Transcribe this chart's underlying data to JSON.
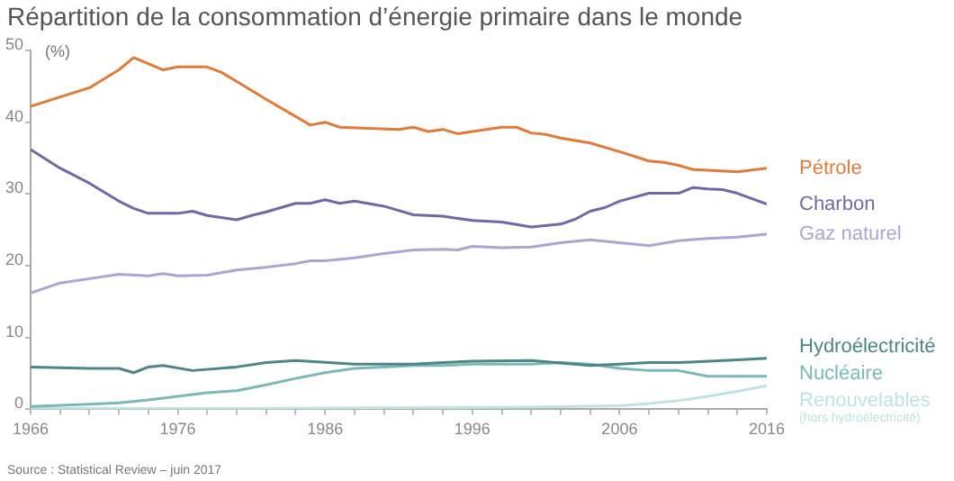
{
  "chart_data": {
    "type": "line",
    "title": "Répartition de la consommation d’énergie primaire dans le monde",
    "ylabel": "(%)",
    "annotations": [
      "Source : Statistical Review – juin 2017"
    ],
    "xlim": [
      1966,
      2016
    ],
    "xticks": [
      1966,
      {
        "value": 1968,
        "label": null
      },
      {
        "value": 1970,
        "label": null
      },
      {
        "value": 1972,
        "label": null
      },
      {
        "value": 1974,
        "label": null
      },
      1976,
      {
        "value": 1978,
        "label": null
      },
      {
        "value": 1980,
        "label": null
      },
      {
        "value": 1982,
        "label": null
      },
      {
        "value": 1984,
        "label": null
      },
      1986,
      {
        "value": 1988,
        "label": null
      },
      {
        "value": 1990,
        "label": null
      },
      {
        "value": 1992,
        "label": null
      },
      {
        "value": 1994,
        "label": null
      },
      1996,
      {
        "value": 1998,
        "label": null
      },
      {
        "value": 2000,
        "label": null
      },
      {
        "value": 2002,
        "label": null
      },
      {
        "value": 2004,
        "label": null
      },
      2006,
      {
        "value": 2008,
        "label": null
      },
      {
        "value": 2010,
        "label": null
      },
      {
        "value": 2012,
        "label": null
      },
      {
        "value": 2014,
        "label": null
      },
      2016
    ],
    "ylim": [
      0,
      50
    ],
    "yticks": [
      0,
      10,
      20,
      30,
      40,
      50
    ],
    "grid": false,
    "legend": false,
    "marker": "none",
    "line_style": "solid",
    "series": [
      {
        "name": "Pétrole",
        "color": "#e07b39",
        "x": [
          1966,
          1970,
          1972,
          1973,
          1975,
          1976,
          1978,
          1979,
          1982,
          1985,
          1986,
          1987,
          1991,
          1992,
          1993,
          1994,
          1995,
          1996,
          1998,
          1999,
          2000,
          2001,
          2002,
          2004,
          2006,
          2008,
          2009,
          2010,
          2011,
          2012,
          2014,
          2016
        ],
        "values": [
          42.2,
          44.8,
          47.3,
          49.0,
          47.3,
          47.7,
          47.7,
          46.9,
          43.2,
          39.6,
          40.0,
          39.3,
          39.0,
          39.3,
          38.7,
          39.0,
          38.4,
          38.7,
          39.3,
          39.3,
          38.5,
          38.3,
          37.8,
          37.1,
          35.9,
          34.6,
          34.4,
          34.0,
          33.4,
          33.3,
          33.1,
          33.6
        ]
      },
      {
        "name": "Charbon",
        "color": "#6e6aa6",
        "x": [
          1966,
          1968,
          1970,
          1972,
          1973,
          1974,
          1976,
          1977,
          1978,
          1980,
          1981,
          1982,
          1984,
          1985,
          1986,
          1987,
          1988,
          1990,
          1992,
          1994,
          1996,
          1998,
          2000,
          2002,
          2003,
          2004,
          2005,
          2006,
          2008,
          2010,
          2011,
          2012,
          2013,
          2014,
          2016
        ],
        "values": [
          36.2,
          33.6,
          31.5,
          29.0,
          28.0,
          27.3,
          27.3,
          27.6,
          27.0,
          26.4,
          27.0,
          27.5,
          28.7,
          28.7,
          29.2,
          28.7,
          29.0,
          28.3,
          27.1,
          26.9,
          26.3,
          26.1,
          25.4,
          25.8,
          26.5,
          27.6,
          28.1,
          29.0,
          30.1,
          30.1,
          30.9,
          30.7,
          30.6,
          30.1,
          28.6
        ]
      },
      {
        "name": "Gaz naturel",
        "color": "#aaa5d5",
        "x": [
          1966,
          1968,
          1970,
          1972,
          1974,
          1975,
          1976,
          1978,
          1980,
          1982,
          1984,
          1985,
          1986,
          1988,
          1990,
          1992,
          1994,
          1995,
          1996,
          1998,
          2000,
          2002,
          2004,
          2006,
          2008,
          2010,
          2012,
          2014,
          2016
        ],
        "values": [
          16.2,
          17.6,
          18.2,
          18.8,
          18.6,
          18.9,
          18.6,
          18.7,
          19.4,
          19.8,
          20.3,
          20.7,
          20.7,
          21.1,
          21.7,
          22.2,
          22.3,
          22.2,
          22.7,
          22.5,
          22.6,
          23.2,
          23.6,
          23.2,
          22.8,
          23.5,
          23.8,
          24.0,
          24.4
        ]
      },
      {
        "name": "Hydroélectricité",
        "color": "#4e8585",
        "x": [
          1966,
          1970,
          1972,
          1973,
          1974,
          1975,
          1977,
          1980,
          1982,
          1984,
          1988,
          1992,
          1994,
          1996,
          2000,
          2004,
          2006,
          2008,
          2010,
          2014,
          2016
        ],
        "values": [
          5.9,
          5.7,
          5.7,
          5.1,
          5.9,
          6.1,
          5.4,
          5.9,
          6.5,
          6.8,
          6.3,
          6.3,
          6.5,
          6.7,
          6.8,
          6.1,
          6.3,
          6.5,
          6.5,
          6.9,
          7.1
        ]
      },
      {
        "name": "Nucléaire",
        "color": "#7bb8b8",
        "x": [
          1966,
          1970,
          1972,
          1974,
          1976,
          1978,
          1980,
          1982,
          1984,
          1986,
          1988,
          1990,
          1992,
          1994,
          1996,
          2000,
          2002,
          2004,
          2006,
          2008,
          2010,
          2012,
          2014,
          2016
        ],
        "values": [
          0.4,
          0.7,
          0.9,
          1.3,
          1.8,
          2.3,
          2.6,
          3.4,
          4.3,
          5.1,
          5.7,
          5.9,
          6.1,
          6.1,
          6.3,
          6.3,
          6.5,
          6.3,
          5.7,
          5.4,
          5.4,
          4.6,
          4.6,
          4.6
        ]
      },
      {
        "name": "Renouvelables (hors hydroélectricité)",
        "color": "#bfe3e3",
        "x": [
          1966,
          1980,
          1990,
          2000,
          2006,
          2008,
          2010,
          2012,
          2014,
          2016
        ],
        "values": [
          0.1,
          0.1,
          0.2,
          0.3,
          0.5,
          0.8,
          1.2,
          1.8,
          2.5,
          3.3
        ]
      }
    ]
  }
}
